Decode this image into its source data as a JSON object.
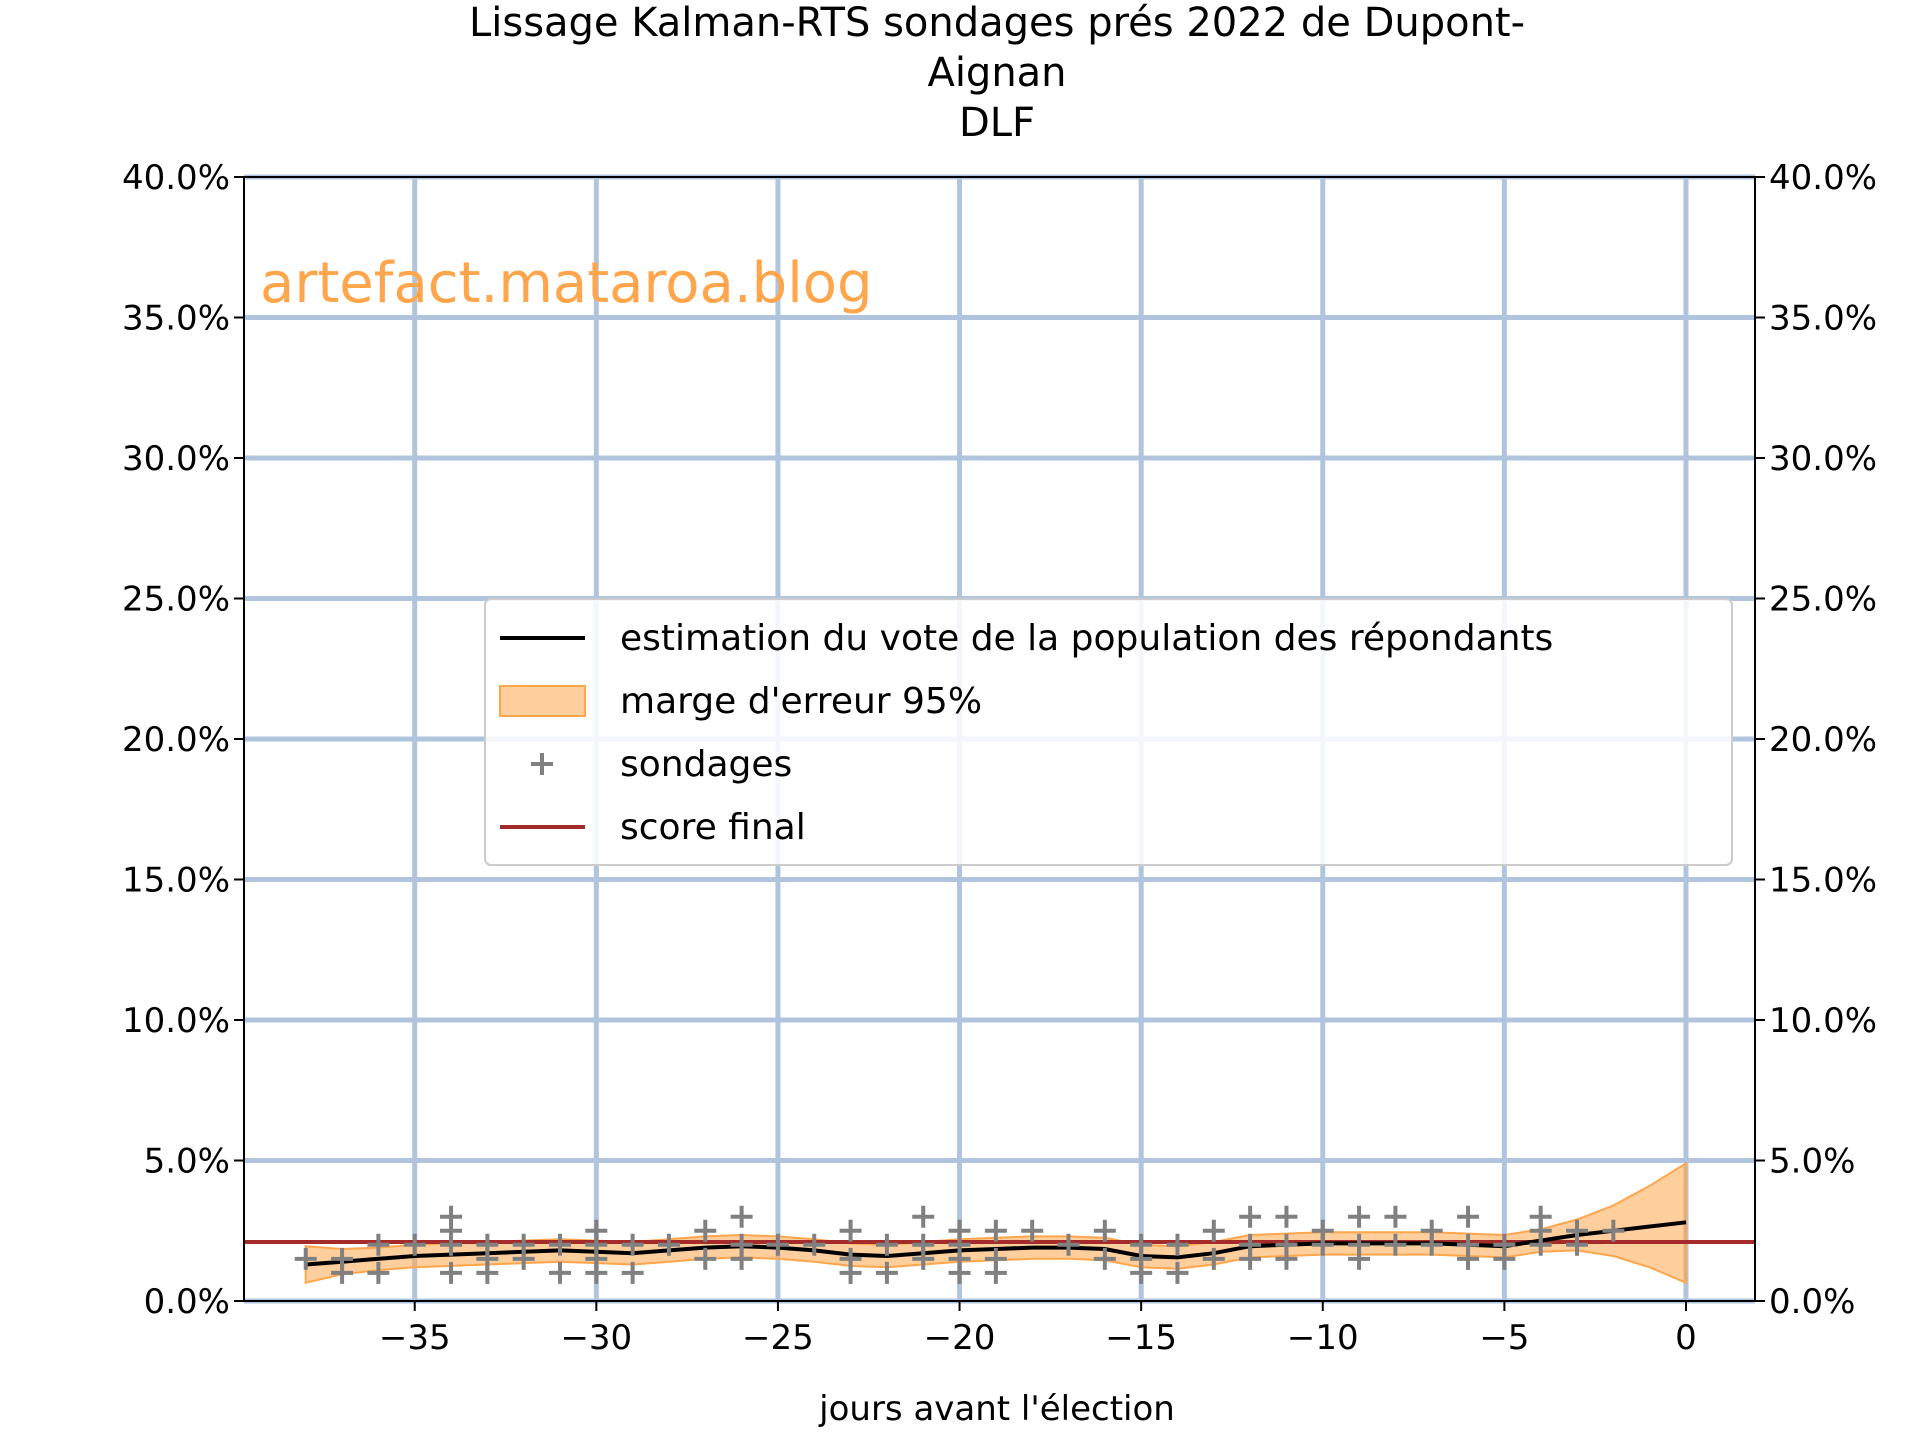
{
  "chart_data": {
    "type": "line",
    "title": "Lissage Kalman-RTS sondages prés 2022 de Dupont-\nAignan\nDLF",
    "xlabel": "jours avant l'élection",
    "ylabel": "",
    "xlim": [
      -39.7,
      1.9
    ],
    "ylim": [
      0,
      40
    ],
    "x_ticks": [
      -35,
      -30,
      -25,
      -20,
      -15,
      -10,
      -5,
      0
    ],
    "x_tick_labels": [
      "−35",
      "−30",
      "−25",
      "−20",
      "−15",
      "−10",
      "−5",
      "0"
    ],
    "y_ticks": [
      0,
      5,
      10,
      15,
      20,
      25,
      30,
      35,
      40
    ],
    "y_tick_labels": [
      "0.0%",
      "5.0%",
      "10.0%",
      "15.0%",
      "20.0%",
      "25.0%",
      "30.0%",
      "35.0%",
      "40.0%"
    ],
    "grid": true,
    "watermark": "artefact.mataroa.blog",
    "legend": {
      "placement": "center-right",
      "entries": [
        "estimation du vote de la population des répondants",
        "marge d'erreur 95%",
        "sondages",
        "score final"
      ]
    },
    "colors": {
      "estimate": "#000000",
      "band": "#ffa64d",
      "polls": "#808080",
      "final": "#a52a2a",
      "grid": "#b0c4de",
      "watermark": "#ffa64d"
    },
    "final_score": 2.1,
    "estimate": {
      "x": [
        -38,
        -37,
        -36,
        -35,
        -34,
        -33,
        -32,
        -31,
        -30,
        -29,
        -28,
        -27,
        -26,
        -25,
        -24,
        -23,
        -22,
        -21,
        -20,
        -19,
        -18,
        -17,
        -16,
        -15,
        -14,
        -13,
        -12,
        -11,
        -10,
        -9,
        -8,
        -7,
        -6,
        -5,
        -4,
        -3,
        -2,
        -1,
        0
      ],
      "y": [
        1.3,
        1.4,
        1.5,
        1.6,
        1.65,
        1.7,
        1.75,
        1.8,
        1.75,
        1.7,
        1.8,
        1.9,
        1.95,
        1.9,
        1.8,
        1.65,
        1.6,
        1.7,
        1.8,
        1.85,
        1.9,
        1.9,
        1.85,
        1.6,
        1.55,
        1.7,
        1.95,
        2.0,
        2.05,
        2.05,
        2.05,
        2.05,
        2.0,
        1.95,
        2.15,
        2.35,
        2.5,
        2.65,
        2.8
      ]
    },
    "band": {
      "lower": [
        0.65,
        0.95,
        1.1,
        1.2,
        1.25,
        1.3,
        1.35,
        1.4,
        1.35,
        1.3,
        1.4,
        1.5,
        1.55,
        1.5,
        1.4,
        1.25,
        1.2,
        1.3,
        1.4,
        1.45,
        1.5,
        1.5,
        1.45,
        1.2,
        1.15,
        1.3,
        1.55,
        1.6,
        1.65,
        1.65,
        1.65,
        1.65,
        1.6,
        1.55,
        1.75,
        1.8,
        1.6,
        1.2,
        0.65
      ],
      "upper": [
        1.95,
        1.85,
        1.9,
        2.0,
        2.05,
        2.1,
        2.15,
        2.2,
        2.15,
        2.1,
        2.2,
        2.3,
        2.35,
        2.3,
        2.2,
        2.05,
        2.0,
        2.1,
        2.2,
        2.25,
        2.3,
        2.3,
        2.25,
        2.0,
        1.95,
        2.1,
        2.35,
        2.4,
        2.45,
        2.45,
        2.45,
        2.45,
        2.4,
        2.35,
        2.55,
        2.9,
        3.4,
        4.1,
        4.9
      ]
    },
    "polls": {
      "x": [
        -38,
        -37,
        -37,
        -36,
        -36,
        -35,
        -34,
        -34,
        -34,
        -34,
        -33,
        -33,
        -33,
        -32,
        -32,
        -31,
        -31,
        -30,
        -30,
        -30,
        -30,
        -29,
        -29,
        -28,
        -27,
        -27,
        -26,
        -26,
        -26,
        -25,
        -24,
        -23,
        -23,
        -23,
        -22,
        -22,
        -21,
        -21,
        -21,
        -20,
        -20,
        -20,
        -20,
        -19,
        -19,
        -19,
        -18,
        -17,
        -16,
        -16,
        -15,
        -15,
        -15,
        -14,
        -14,
        -13,
        -13,
        -12,
        -12,
        -12,
        -11,
        -11,
        -11,
        -10,
        -10,
        -9,
        -9,
        -9,
        -8,
        -8,
        -7,
        -7,
        -6,
        -6,
        -6,
        -5,
        -5,
        -4,
        -4,
        -4,
        -3,
        -3,
        -2
      ],
      "y": [
        1.5,
        1.5,
        1.0,
        2.0,
        1.0,
        2.0,
        3.0,
        2.5,
        2.0,
        1.0,
        2.0,
        1.5,
        1.0,
        2.0,
        1.5,
        2.0,
        1.0,
        2.5,
        2.0,
        1.5,
        1.0,
        2.0,
        1.0,
        2.0,
        2.5,
        1.5,
        3.0,
        2.0,
        1.5,
        2.0,
        2.0,
        2.5,
        1.5,
        1.0,
        2.0,
        1.0,
        3.0,
        2.0,
        1.5,
        2.5,
        2.0,
        1.5,
        1.0,
        2.5,
        1.5,
        1.0,
        2.5,
        2.0,
        2.5,
        1.5,
        2.0,
        1.5,
        1.0,
        2.0,
        1.0,
        2.5,
        1.5,
        3.0,
        2.0,
        1.5,
        3.0,
        2.0,
        1.5,
        2.5,
        2.0,
        3.0,
        2.0,
        1.5,
        3.0,
        2.0,
        2.5,
        2.0,
        3.0,
        2.0,
        1.5,
        2.0,
        1.5,
        3.0,
        2.5,
        2.0,
        2.5,
        2.0,
        2.5
      ]
    }
  }
}
